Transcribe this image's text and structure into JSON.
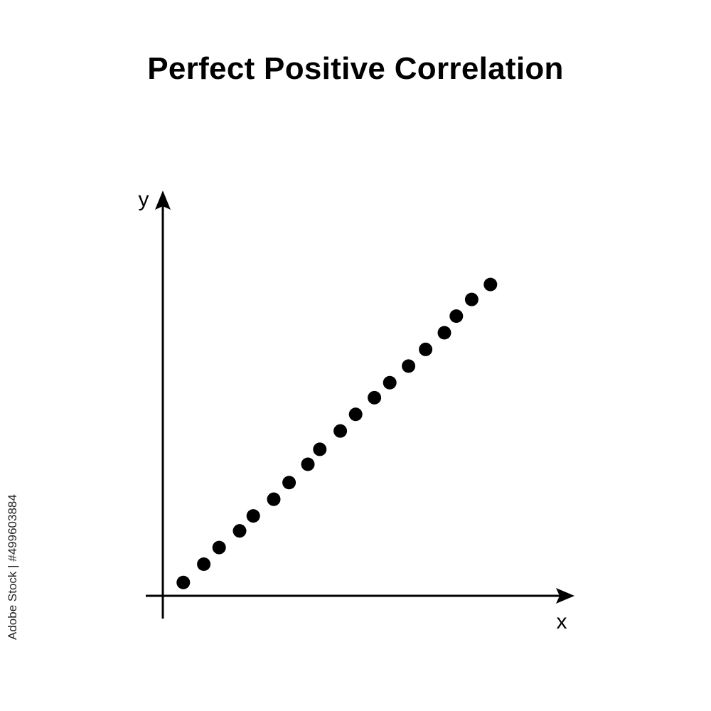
{
  "chart_data": {
    "type": "scatter",
    "title": "Perfect Positive Correlation",
    "xlabel": "x",
    "ylabel": "y",
    "xlim": [
      0,
      24
    ],
    "ylim": [
      0,
      24
    ],
    "grid": false,
    "ticks": false,
    "point_color": "#000000",
    "axis_color": "#000000",
    "x": [
      1.2,
      2.4,
      3.3,
      4.5,
      5.3,
      6.5,
      7.4,
      8.5,
      9.2,
      10.4,
      11.3,
      12.4,
      13.3,
      14.4,
      15.4,
      16.5,
      17.2,
      18.1,
      19.2
    ],
    "y": [
      0.8,
      1.9,
      2.9,
      3.9,
      4.8,
      5.8,
      6.8,
      7.9,
      8.8,
      9.9,
      10.9,
      11.9,
      12.8,
      13.8,
      14.8,
      15.8,
      16.8,
      17.8,
      18.7
    ]
  },
  "watermark": "Adobe Stock | #499603884"
}
